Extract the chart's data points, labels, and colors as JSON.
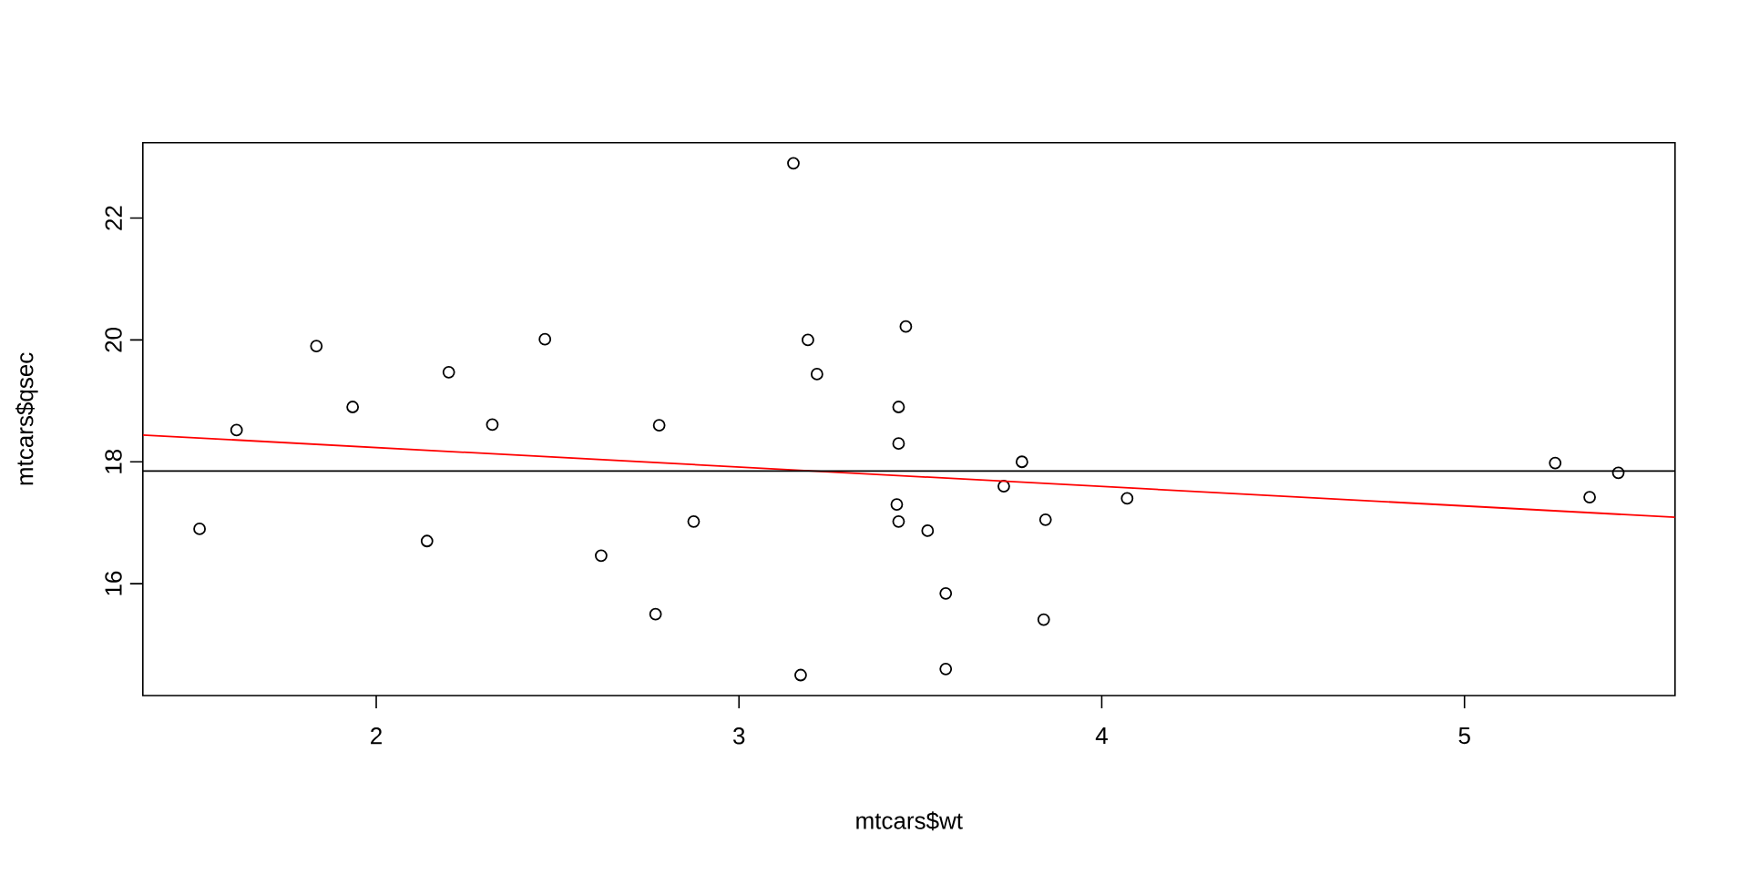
{
  "chart_data": {
    "type": "scatter",
    "xlabel": "mtcars$wt",
    "ylabel": "mtcars$qsec",
    "xlim": [
      1.3566,
      5.5804
    ],
    "ylim": [
      14.164,
      23.236
    ],
    "xticks": [
      2,
      3,
      4,
      5
    ],
    "yticks": [
      16,
      18,
      20,
      22
    ],
    "grid": false,
    "series": [
      {
        "marker": "circle",
        "color": "#000000",
        "x": [
          2.62,
          2.875,
          2.32,
          3.215,
          3.44,
          3.46,
          3.57,
          3.19,
          3.15,
          3.44,
          3.44,
          4.07,
          3.73,
          3.78,
          5.25,
          5.424,
          5.345,
          2.2,
          1.615,
          1.835,
          2.465,
          3.52,
          3.435,
          3.84,
          3.845,
          1.935,
          2.14,
          1.513,
          3.17,
          2.77,
          3.57,
          2.78
        ],
        "values": [
          16.46,
          17.02,
          18.61,
          19.44,
          17.02,
          20.22,
          15.84,
          20.0,
          22.9,
          18.3,
          18.9,
          17.4,
          17.6,
          18.0,
          17.98,
          17.82,
          17.42,
          19.47,
          18.52,
          19.9,
          20.01,
          16.87,
          17.3,
          15.41,
          17.05,
          18.9,
          16.7,
          16.9,
          14.5,
          15.5,
          14.6,
          18.6
        ]
      },
      {
        "type": "line",
        "marker": "none",
        "color": "#ff0000",
        "x": [
          1.3566,
          5.5804
        ],
        "values": [
          18.44,
          17.09
        ]
      }
    ],
    "ref_lines": [
      {
        "axis": "y",
        "value": 17.85,
        "color": "#000000"
      }
    ]
  }
}
